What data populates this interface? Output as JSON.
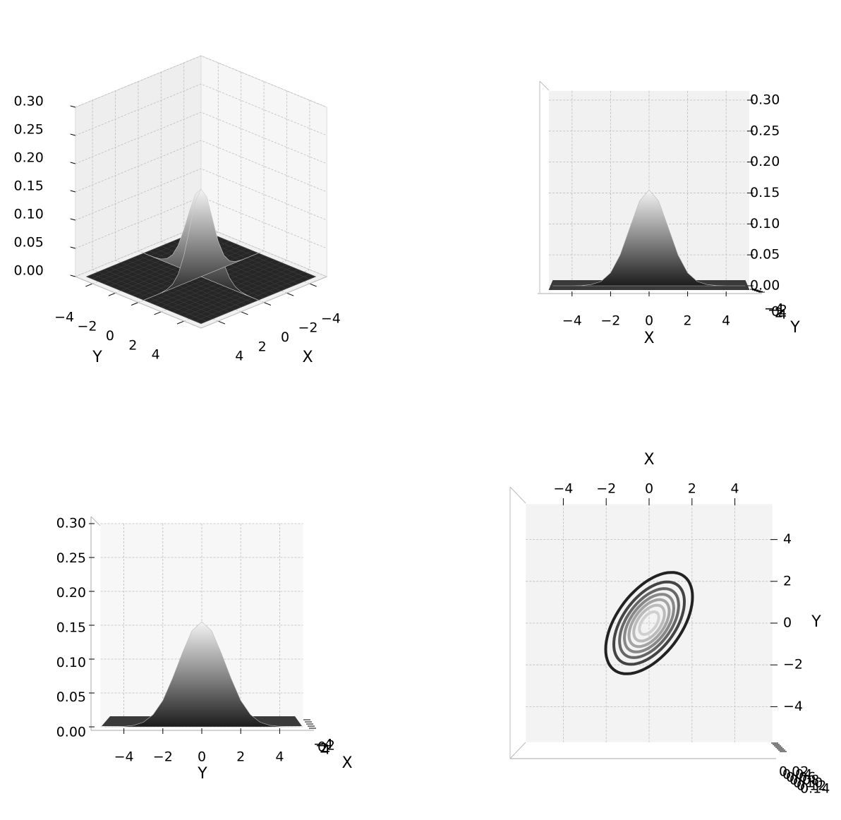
{
  "chart_data": [
    {
      "type": "surface3d",
      "xlabel": "X",
      "ylabel": "Y",
      "x": [
        -5,
        -4.5,
        -4,
        -3.5,
        -3,
        -2.5,
        -2,
        -1.5,
        -1,
        -0.5,
        0,
        0.5,
        1,
        1.5,
        2,
        2.5,
        3,
        3.5,
        4,
        4.5,
        5
      ],
      "profile_x": [
        0,
        0,
        0,
        0.0003,
        0.002,
        0.007,
        0.021,
        0.05,
        0.094,
        0.137,
        0.155,
        0.137,
        0.094,
        0.05,
        0.021,
        0.007,
        0.002,
        0.0003,
        0,
        0,
        0
      ],
      "y": [
        -5,
        -4.5,
        -4,
        -3.5,
        -3,
        -2.5,
        -2,
        -1.5,
        -1,
        -0.5,
        0,
        0.5,
        1,
        1.5,
        2,
        2.5,
        3,
        3.5,
        4,
        4.5,
        5
      ],
      "profile_y": [
        0,
        0.0001,
        0.0006,
        0.0022,
        0.0068,
        0.018,
        0.039,
        0.072,
        0.109,
        0.142,
        0.155,
        0.142,
        0.109,
        0.072,
        0.039,
        0.018,
        0.0068,
        0.0022,
        0.0006,
        0.0001,
        0
      ],
      "xlim": [
        -5.5,
        5.5
      ],
      "ylim": [
        -5.5,
        5.5
      ],
      "zlim": [
        0,
        0.3
      ],
      "xticks": [
        {
          "value": -4,
          "label": "−4"
        },
        {
          "value": -2,
          "label": "−2"
        },
        0,
        2,
        4
      ],
      "yticks": [
        {
          "value": -4,
          "label": "−4"
        },
        {
          "value": -2,
          "label": "−2"
        },
        0,
        2,
        4
      ],
      "zticks": [
        {
          "value": 0,
          "label": "0.00"
        },
        0.05,
        {
          "value": 0.1,
          "label": "0.10"
        },
        0.15,
        {
          "value": 0.2,
          "label": "0.20"
        },
        0.25,
        {
          "value": 0.3,
          "label": "0.30"
        }
      ]
    },
    {
      "type": "surface-front",
      "xlabel": "X",
      "ylabel": "Y",
      "x": [
        -5,
        -4.5,
        -4,
        -3.5,
        -3,
        -2.5,
        -2,
        -1.5,
        -1,
        -0.5,
        0,
        0.5,
        1,
        1.5,
        2,
        2.5,
        3,
        3.5,
        4,
        4.5,
        5
      ],
      "profile_x": [
        0,
        0,
        0,
        0.0003,
        0.002,
        0.007,
        0.021,
        0.05,
        0.094,
        0.137,
        0.155,
        0.137,
        0.094,
        0.05,
        0.021,
        0.007,
        0.002,
        0.0003,
        0,
        0,
        0
      ],
      "xlim": [
        -5.2,
        5.2
      ],
      "zlim": [
        0,
        0.315
      ],
      "xticks": [
        {
          "value": -4,
          "label": "−4"
        },
        {
          "value": -2,
          "label": "−2"
        },
        0,
        2,
        4
      ],
      "yticks": [
        {
          "value": -4,
          "label": "−4"
        },
        {
          "value": -2,
          "label": "−2"
        },
        0,
        2,
        4
      ],
      "zticks": [
        {
          "value": 0,
          "label": "0.00"
        },
        0.05,
        {
          "value": 0.1,
          "label": "0.10"
        },
        0.15,
        {
          "value": 0.2,
          "label": "0.20"
        },
        0.25,
        {
          "value": 0.3,
          "label": "0.30"
        }
      ]
    },
    {
      "type": "surface-side",
      "xlabel": "X",
      "ylabel": "Y",
      "y": [
        -5,
        -4.5,
        -4,
        -3.5,
        -3,
        -2.5,
        -2,
        -1.5,
        -1,
        -0.5,
        0,
        0.5,
        1,
        1.5,
        2,
        2.5,
        3,
        3.5,
        4,
        4.5,
        5
      ],
      "profile_y": [
        0,
        0.0001,
        0.0006,
        0.0022,
        0.0068,
        0.018,
        0.039,
        0.072,
        0.109,
        0.142,
        0.155,
        0.142,
        0.109,
        0.072,
        0.039,
        0.018,
        0.0068,
        0.0022,
        0.0006,
        0.0001,
        0
      ],
      "ylim": [
        -5.2,
        5.2
      ],
      "zlim": [
        0,
        0.3
      ],
      "xticks": [
        {
          "value": -4,
          "label": "−4"
        },
        {
          "value": -2,
          "label": "−2"
        },
        0,
        2,
        4
      ],
      "yticks": [
        {
          "value": -4,
          "label": "−4"
        },
        {
          "value": -2,
          "label": "−2"
        },
        0,
        2,
        4
      ],
      "zticks": [
        {
          "value": 0,
          "label": "0.00"
        },
        0.05,
        {
          "value": 0.1,
          "label": "0.10"
        },
        0.15,
        {
          "value": 0.2,
          "label": "0.20"
        },
        0.25,
        {
          "value": 0.3,
          "label": "0.30"
        }
      ]
    },
    {
      "type": "contour-top",
      "xlabel": "X",
      "ylabel": "Y",
      "xlim": [
        -5.75,
        5.75
      ],
      "ylim": [
        -5.7,
        5.7
      ],
      "xticks": [
        {
          "value": -4,
          "label": "−4"
        },
        {
          "value": -2,
          "label": "−2"
        },
        0,
        2,
        4
      ],
      "yticks": [
        {
          "value": -4,
          "label": "−4"
        },
        {
          "value": -2,
          "label": "−2"
        },
        0,
        2,
        4
      ],
      "zticks": [
        0.02,
        0.04,
        0.06,
        0.08,
        {
          "value": 0.1,
          "label": "0.10"
        },
        0.12,
        0.14
      ],
      "levels": [
        0.02,
        0.04,
        0.06,
        0.08,
        0.1,
        0.12,
        0.14
      ],
      "colors": [
        "#222222",
        "#444444",
        "#666666",
        "#888888",
        "#a4a4a4",
        "#bbbbbb",
        "#d0d0d0"
      ]
    }
  ]
}
